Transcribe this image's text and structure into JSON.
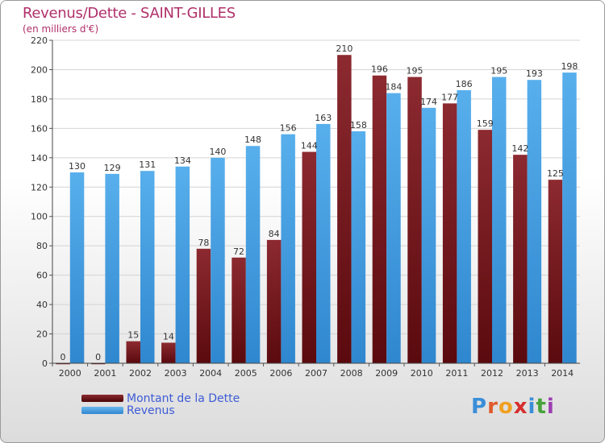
{
  "header": {
    "title": "Revenus/Dette - SAINT-GILLES",
    "subtitle": "(en milliers d'€)"
  },
  "colors": {
    "debt": "#7a1e24",
    "revenue": "#4aa3e6",
    "title": "#b0306a",
    "legend_text": "#3d5bd6"
  },
  "legend": {
    "items": [
      {
        "label": "Montant de la Dette",
        "color": "#6b1014"
      },
      {
        "label": "Revenus",
        "color": "#4aa3e6"
      }
    ]
  },
  "logo": {
    "text": "Proxiti",
    "letter_colors": [
      "#3a8ed8",
      "#e05a2b",
      "#f0a020",
      "#d62e2e",
      "#3a8ed8",
      "#46a23a",
      "#9b3fb0"
    ]
  },
  "chart_data": {
    "type": "bar",
    "title": "Revenus/Dette - SAINT-GILLES",
    "ylabel": "(en milliers d'€)",
    "xlabel": "",
    "categories": [
      "2000",
      "2001",
      "2002",
      "2003",
      "2004",
      "2005",
      "2006",
      "2007",
      "2008",
      "2009",
      "2010",
      "2011",
      "2012",
      "2013",
      "2014"
    ],
    "series": [
      {
        "name": "Montant de la Dette",
        "values": [
          0,
          0,
          15,
          14,
          78,
          72,
          84,
          144,
          210,
          196,
          195,
          177,
          159,
          142,
          125
        ]
      },
      {
        "name": "Revenus",
        "values": [
          130,
          129,
          131,
          134,
          140,
          148,
          156,
          163,
          158,
          184,
          174,
          186,
          195,
          193,
          198
        ]
      }
    ],
    "ylim": [
      0,
      220
    ],
    "yticks": [
      0,
      20,
      40,
      60,
      80,
      100,
      120,
      140,
      160,
      180,
      200,
      220
    ],
    "grid": true,
    "legend_position": "bottom-left"
  }
}
